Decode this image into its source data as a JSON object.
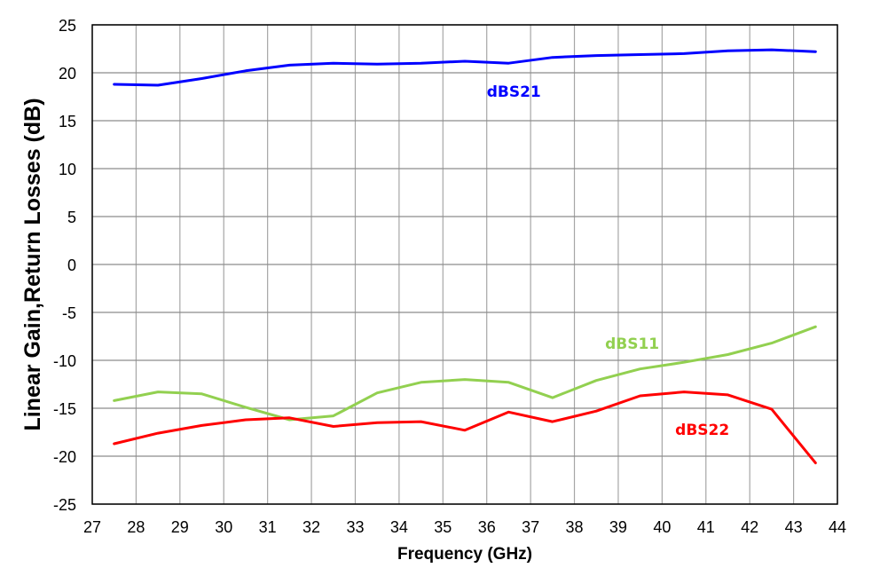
{
  "chart_data": {
    "type": "line",
    "title": "",
    "xlabel": "Frequency (GHz)",
    "ylabel": "Linear Gain,Return Losses (dB)",
    "xlim": [
      27,
      44
    ],
    "ylim": [
      -25,
      25
    ],
    "x_ticks": [
      27,
      28,
      29,
      30,
      31,
      32,
      33,
      34,
      35,
      36,
      37,
      38,
      39,
      40,
      41,
      42,
      43,
      44
    ],
    "y_ticks": [
      25,
      20,
      15,
      10,
      5,
      0,
      -5,
      -10,
      -15,
      -20,
      -25
    ],
    "grid": true,
    "legend_position": "inline labels",
    "x": [
      27.5,
      28.5,
      29.5,
      30.5,
      31.5,
      32.5,
      33.5,
      34.5,
      35.5,
      36.5,
      37.5,
      38.5,
      39.5,
      40.5,
      41.5,
      42.5,
      43.5
    ],
    "series": [
      {
        "name": "dBS21",
        "color": "#0000ff",
        "label_pos": [
          36,
          17.5
        ],
        "values": [
          18.8,
          18.7,
          19.4,
          20.2,
          20.8,
          21.0,
          20.9,
          21.0,
          21.2,
          21.0,
          21.6,
          21.8,
          21.9,
          22.0,
          22.3,
          22.4,
          22.2
        ]
      },
      {
        "name": "dBS11",
        "color": "#92d050",
        "label_pos": [
          38.7,
          -8.8
        ],
        "values": [
          -14.2,
          -13.3,
          -13.5,
          -14.9,
          -16.2,
          -15.8,
          -13.4,
          -12.3,
          -12.0,
          -12.3,
          -13.9,
          -12.1,
          -10.9,
          -10.2,
          -9.4,
          -8.2,
          -6.5
        ]
      },
      {
        "name": "dBS22",
        "color": "#ff0000",
        "label_pos": [
          40.3,
          -17.8
        ],
        "values": [
          -18.7,
          -17.6,
          -16.8,
          -16.2,
          -16.0,
          -16.9,
          -16.5,
          -16.4,
          -17.3,
          -15.4,
          -16.4,
          -15.3,
          -13.7,
          -13.3,
          -13.6,
          -15.1,
          -20.7
        ]
      }
    ]
  }
}
